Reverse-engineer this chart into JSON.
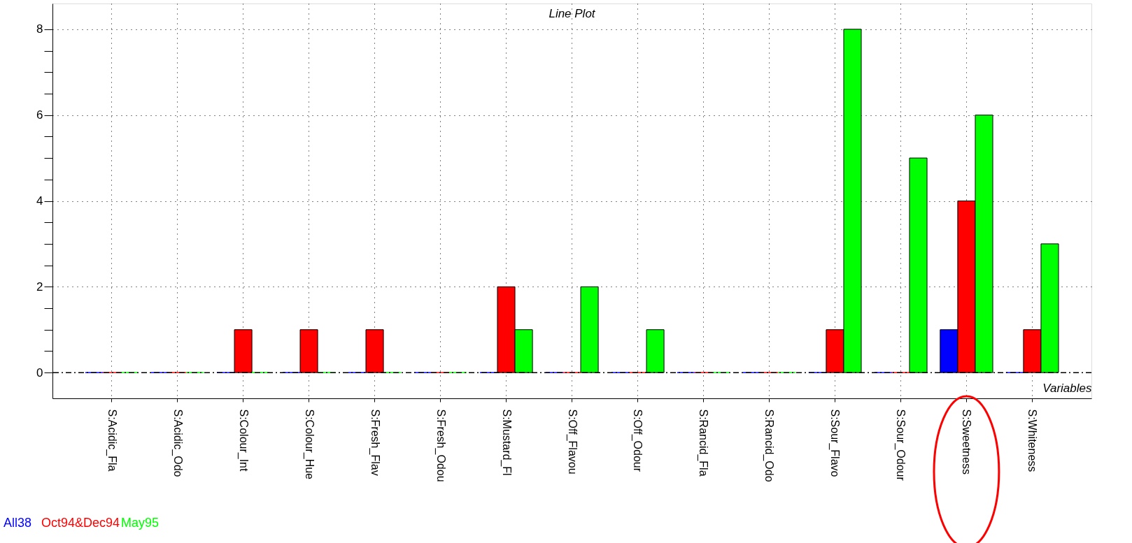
{
  "chart_data": {
    "type": "bar",
    "title": "Line Plot",
    "xlabel": "Variables",
    "categories": [
      "S:Acidic_Fla",
      "S:Acidic_Odo",
      "S:Colour_Int",
      "S:Colour_Hue",
      "S:Fresh_Flav",
      "S:Fresh_Odou",
      "S:Mustard_Fl",
      "S:Off_Flavou",
      "S:Off_Odour",
      "S:Rancid_Fla",
      "S:Rancid_Odo",
      "S:Sour_Flavo",
      "S:Sour_Odour",
      "S:Sweetness",
      "S:Whiteness"
    ],
    "series": [
      {
        "name": "All38",
        "color": "#0000ff",
        "values": [
          0,
          0,
          0,
          0,
          0,
          0,
          0,
          0,
          0,
          0,
          0,
          0,
          0,
          1,
          0
        ]
      },
      {
        "name": "Oct94&Dec94",
        "color": "#ff0000",
        "values": [
          0,
          0,
          1,
          1,
          1,
          0,
          2,
          0,
          0,
          0,
          0,
          1,
          0,
          4,
          1
        ]
      },
      {
        "name": "May95",
        "color": "#00ff00",
        "values": [
          0,
          0,
          0,
          0,
          0,
          0,
          1,
          2,
          1,
          0,
          0,
          8,
          5,
          6,
          3
        ]
      }
    ],
    "ylim": [
      -0.6,
      8.6
    ],
    "yticks": [
      0,
      {
        "value": 0.5,
        "label": null
      },
      {
        "value": 1,
        "label": null
      },
      {
        "value": 1.5,
        "label": null
      },
      2,
      {
        "value": 2.5,
        "label": null
      },
      {
        "value": 3,
        "label": null
      },
      {
        "value": 3.5,
        "label": null
      },
      4,
      {
        "value": 4.5,
        "label": null
      },
      {
        "value": 5,
        "label": null
      },
      {
        "value": 5.5,
        "label": null
      },
      6,
      {
        "value": 6.5,
        "label": null
      },
      {
        "value": 7,
        "label": null
      },
      {
        "value": 7.5,
        "label": null
      },
      8
    ],
    "ref_lines": [
      {
        "axis": "y",
        "value": 0,
        "line_style": "dashed",
        "color": "#000000"
      }
    ],
    "grid": true,
    "legend": "bottom left"
  }
}
